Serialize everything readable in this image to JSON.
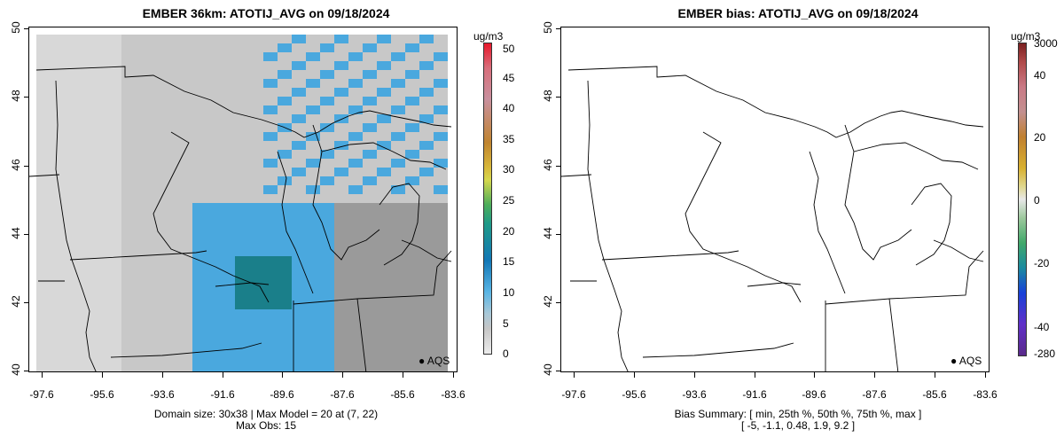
{
  "left_panel": {
    "title": "EMBER 36km: ATOTIJ_AVG on 09/18/2024",
    "unit": "ug/m3",
    "colorbar_labels": [
      "50",
      "45",
      "40",
      "35",
      "30",
      "25",
      "20",
      "15",
      "10",
      "5",
      "0"
    ],
    "y_ticks": [
      "50",
      "48",
      "46",
      "44",
      "42",
      "40"
    ],
    "x_ticks": [
      "-97.6",
      "-95.6",
      "-93.6",
      "-91.6",
      "-89.6",
      "-87.6",
      "-85.6",
      "-83.6"
    ],
    "footer_line1": "Domain size: 30x38 | Max Model = 20 at (7, 22)",
    "footer_line2": "Max Obs: 15",
    "legend_label": "AQS",
    "colors": {
      "gray_low": "#c8c8c8",
      "blue_mid": "#4aa8de",
      "teal_high": "#1a7f8a"
    }
  },
  "right_panel": {
    "title": "EMBER bias: ATOTIJ_AVG on 09/18/2024",
    "unit": "ug/m3",
    "colorbar_labels": [
      "3000",
      "40",
      "20",
      "0",
      "-20",
      "-40",
      "-280"
    ],
    "y_ticks": [
      "50",
      "48",
      "46",
      "44",
      "42",
      "40"
    ],
    "x_ticks": [
      "-97.6",
      "-95.6",
      "-93.6",
      "-91.6",
      "-89.6",
      "-87.6",
      "-85.6",
      "-83.6"
    ],
    "footer_line1": "Bias Summary: [ min, 25th %, 50th %, 75th %, max ]",
    "footer_line2": "[ -5,   -1.1,   0.48,   1.9,   9.2 ]",
    "legend_label": "AQS",
    "bias_summary": {
      "min": -5,
      "p25": -1.1,
      "p50": 0.48,
      "p75": 1.9,
      "max": 9.2
    }
  }
}
